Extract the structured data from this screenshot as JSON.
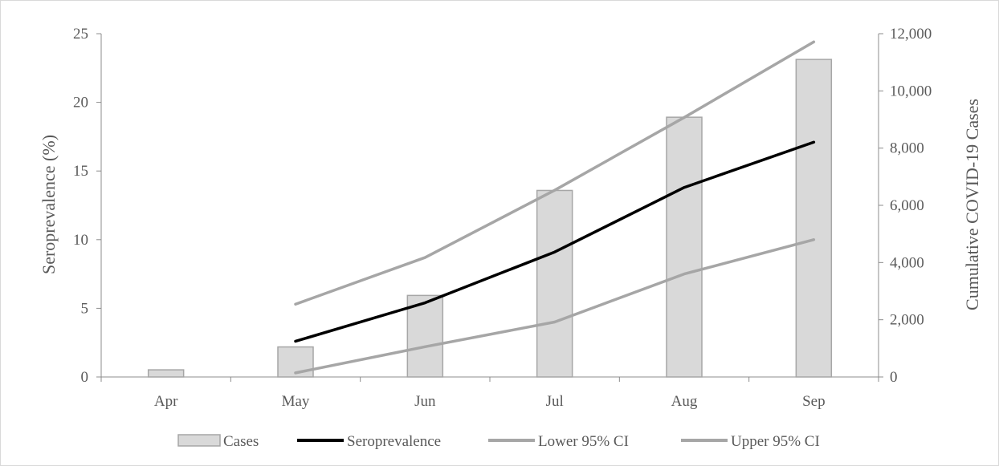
{
  "chart_data": {
    "type": "bar+line",
    "categories": [
      "Apr",
      "May",
      "Jun",
      "Jul",
      "Aug",
      "Sep"
    ],
    "left_axis": {
      "label": "Seroprevalence (%)",
      "range": [
        0,
        25
      ],
      "ticks": [
        "0",
        "5",
        "10",
        "15",
        "20",
        "25"
      ]
    },
    "right_axis": {
      "label": "Cumulative COVID-19 Cases",
      "range": [
        0,
        12000
      ],
      "ticks": [
        "0",
        "2,000",
        "4,000",
        "6,000",
        "8,000",
        "10,000",
        "12,000"
      ]
    },
    "bars": {
      "name": "Cases",
      "axis": "right",
      "values": [
        250,
        1050,
        2850,
        6520,
        9080,
        11100
      ],
      "color": "#d9d9d9",
      "stroke": "#a6a6a6"
    },
    "series": [
      {
        "name": "Seroprevalence",
        "axis": "left",
        "color": "#000000",
        "values": [
          null,
          2.6,
          5.4,
          9.1,
          13.8,
          17.1
        ]
      },
      {
        "name": "Lower 95% CI",
        "axis": "left",
        "color": "#a6a6a6",
        "values": [
          null,
          0.3,
          2.2,
          4.0,
          7.5,
          10.0
        ]
      },
      {
        "name": "Upper 95% CI",
        "axis": "left",
        "color": "#a6a6a6",
        "values": [
          null,
          5.3,
          8.7,
          13.6,
          18.9,
          24.4
        ]
      }
    ],
    "legend": {
      "position": "bottom",
      "items": [
        "Cases",
        "Seroprevalence",
        "Lower 95% CI",
        "Upper 95% CI"
      ]
    },
    "grid": false
  }
}
